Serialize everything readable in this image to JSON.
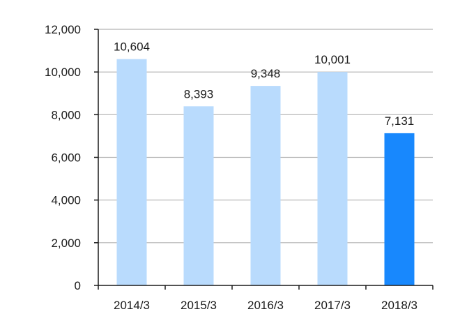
{
  "chart_data": {
    "type": "bar",
    "title": "",
    "xlabel": "",
    "ylabel": "",
    "categories": [
      "2014/3",
      "2015/3",
      "2016/3",
      "2017/3",
      "2018/3"
    ],
    "values": [
      10604,
      8393,
      9348,
      10001,
      7131
    ],
    "value_labels": [
      "10,604",
      "8,393",
      "9,348",
      "10,001",
      "7,131"
    ],
    "ylim": [
      0,
      12000
    ],
    "yticks": [
      0,
      2000,
      4000,
      6000,
      8000,
      10000,
      12000
    ],
    "ytick_labels": [
      "0",
      "2,000",
      "4,000",
      "6,000",
      "8,000",
      "10,000",
      "12,000"
    ],
    "grid": true,
    "legend": "none",
    "colors": {
      "default_bar": "#b9dbfd",
      "highlight_bar": "#1888fd",
      "grid": "#b3b3b3",
      "axis": "#1a1a1a"
    },
    "highlight_index": 4
  }
}
